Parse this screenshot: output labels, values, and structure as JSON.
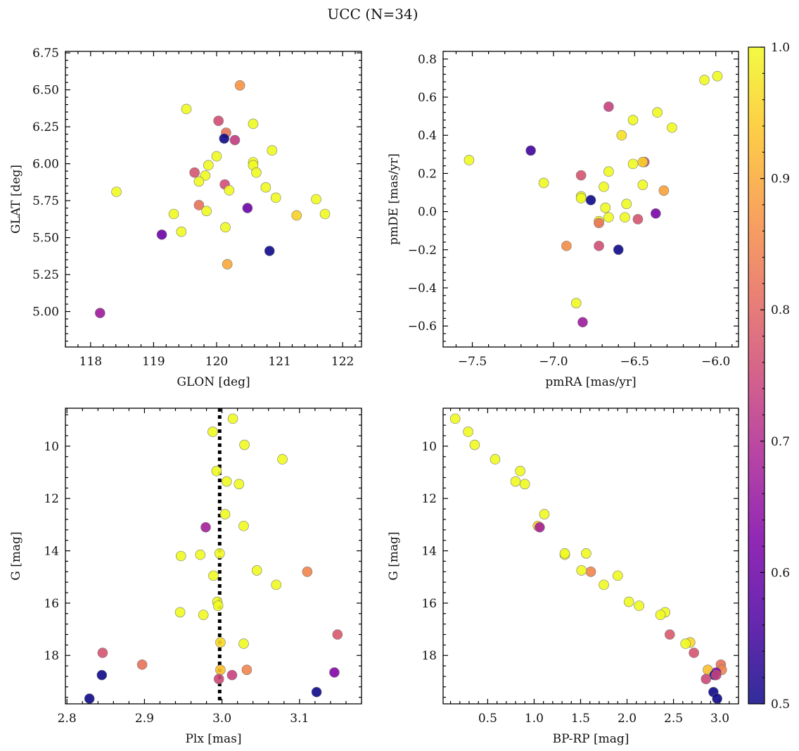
{
  "title": "UCC (N=34)",
  "colorbar": {
    "colormap": "plasma",
    "range": [
      0.5,
      1.0
    ],
    "ticks": [
      "0.5",
      "0.6",
      "0.7",
      "0.8",
      "0.9",
      "1.0"
    ]
  },
  "chart_data": [
    {
      "type": "scatter",
      "xlabel": "GLON [deg]",
      "ylabel": "GLAT [deg]",
      "xlim": [
        117.6,
        122.3
      ],
      "ylim": [
        4.76,
        6.76
      ],
      "y_inverted": false,
      "xticks": [
        "118",
        "119",
        "120",
        "121",
        "122"
      ],
      "yticks": [
        "5.00",
        "5.25",
        "5.50",
        "5.75",
        "6.00",
        "6.25",
        "6.50",
        "6.75"
      ],
      "points": [
        {
          "x": 120.37,
          "y": 6.53,
          "c": 0.87
        },
        {
          "x": 119.52,
          "y": 6.37,
          "c": 1.0
        },
        {
          "x": 120.03,
          "y": 6.29,
          "c": 0.76
        },
        {
          "x": 120.58,
          "y": 6.27,
          "c": 1.0
        },
        {
          "x": 120.15,
          "y": 6.21,
          "c": 0.82
        },
        {
          "x": 120.12,
          "y": 6.17,
          "c": 0.5
        },
        {
          "x": 120.29,
          "y": 6.16,
          "c": 0.73
        },
        {
          "x": 120.88,
          "y": 6.09,
          "c": 1.0
        },
        {
          "x": 120.0,
          "y": 6.05,
          "c": 1.0
        },
        {
          "x": 120.58,
          "y": 6.01,
          "c": 1.0
        },
        {
          "x": 120.58,
          "y": 5.99,
          "c": 1.0
        },
        {
          "x": 119.87,
          "y": 5.99,
          "c": 1.0
        },
        {
          "x": 120.63,
          "y": 5.94,
          "c": 1.0
        },
        {
          "x": 119.65,
          "y": 5.94,
          "c": 0.77
        },
        {
          "x": 119.82,
          "y": 5.92,
          "c": 1.0
        },
        {
          "x": 119.72,
          "y": 5.88,
          "c": 1.0
        },
        {
          "x": 120.13,
          "y": 5.86,
          "c": 0.76
        },
        {
          "x": 120.78,
          "y": 5.84,
          "c": 1.0
        },
        {
          "x": 120.2,
          "y": 5.82,
          "c": 1.0
        },
        {
          "x": 118.41,
          "y": 5.81,
          "c": 1.0
        },
        {
          "x": 120.94,
          "y": 5.77,
          "c": 1.0
        },
        {
          "x": 121.58,
          "y": 5.76,
          "c": 1.0
        },
        {
          "x": 119.72,
          "y": 5.72,
          "c": 0.82
        },
        {
          "x": 120.49,
          "y": 5.7,
          "c": 0.6
        },
        {
          "x": 119.84,
          "y": 5.68,
          "c": 1.0
        },
        {
          "x": 121.72,
          "y": 5.66,
          "c": 1.0
        },
        {
          "x": 119.32,
          "y": 5.66,
          "c": 1.0
        },
        {
          "x": 121.27,
          "y": 5.65,
          "c": 0.95
        },
        {
          "x": 120.14,
          "y": 5.57,
          "c": 1.0
        },
        {
          "x": 119.44,
          "y": 5.54,
          "c": 1.0
        },
        {
          "x": 119.13,
          "y": 5.52,
          "c": 0.6
        },
        {
          "x": 120.84,
          "y": 5.41,
          "c": 0.5
        },
        {
          "x": 120.17,
          "y": 5.32,
          "c": 0.9
        },
        {
          "x": 118.15,
          "y": 4.99,
          "c": 0.67
        }
      ]
    },
    {
      "type": "scatter",
      "xlabel": "pmRA [mas/yr]",
      "ylabel": "pmDE [mas/yr]",
      "xlim": [
        -7.68,
        -5.86
      ],
      "ylim": [
        -0.71,
        0.84
      ],
      "y_inverted": false,
      "xticks": [
        "−7.5",
        "−7.0",
        "−6.5",
        "−6.0"
      ],
      "yticks": [
        "−0.6",
        "−0.4",
        "−0.2",
        "0.0",
        "0.2",
        "0.4",
        "0.6",
        "0.8"
      ],
      "points": [
        {
          "x": -5.99,
          "y": 0.71,
          "c": 1.0
        },
        {
          "x": -6.07,
          "y": 0.69,
          "c": 1.0
        },
        {
          "x": -6.66,
          "y": 0.55,
          "c": 0.74
        },
        {
          "x": -6.36,
          "y": 0.52,
          "c": 1.0
        },
        {
          "x": -6.51,
          "y": 0.48,
          "c": 1.0
        },
        {
          "x": -6.27,
          "y": 0.44,
          "c": 1.0
        },
        {
          "x": -6.58,
          "y": 0.4,
          "c": 0.97
        },
        {
          "x": -7.14,
          "y": 0.32,
          "c": 0.55
        },
        {
          "x": -7.52,
          "y": 0.27,
          "c": 1.0
        },
        {
          "x": -6.44,
          "y": 0.26,
          "c": 0.75
        },
        {
          "x": -6.45,
          "y": 0.26,
          "c": 0.95
        },
        {
          "x": -6.51,
          "y": 0.25,
          "c": 1.0
        },
        {
          "x": -6.66,
          "y": 0.21,
          "c": 1.0
        },
        {
          "x": -6.83,
          "y": 0.19,
          "c": 0.77
        },
        {
          "x": -7.06,
          "y": 0.15,
          "c": 1.0
        },
        {
          "x": -6.45,
          "y": 0.14,
          "c": 1.0
        },
        {
          "x": -6.69,
          "y": 0.13,
          "c": 1.0
        },
        {
          "x": -6.32,
          "y": 0.11,
          "c": 0.89
        },
        {
          "x": -6.83,
          "y": 0.08,
          "c": 1.0
        },
        {
          "x": -6.83,
          "y": 0.07,
          "c": 1.0
        },
        {
          "x": -6.77,
          "y": 0.06,
          "c": 0.5
        },
        {
          "x": -6.55,
          "y": 0.04,
          "c": 1.0
        },
        {
          "x": -6.68,
          "y": 0.02,
          "c": 1.0
        },
        {
          "x": -6.37,
          "y": -0.01,
          "c": 0.62
        },
        {
          "x": -6.56,
          "y": -0.03,
          "c": 1.0
        },
        {
          "x": -6.66,
          "y": -0.03,
          "c": 1.0
        },
        {
          "x": -6.48,
          "y": -0.04,
          "c": 0.77
        },
        {
          "x": -6.72,
          "y": -0.05,
          "c": 1.0
        },
        {
          "x": -6.72,
          "y": -0.06,
          "c": 0.82
        },
        {
          "x": -6.92,
          "y": -0.18,
          "c": 0.86
        },
        {
          "x": -6.72,
          "y": -0.18,
          "c": 0.76
        },
        {
          "x": -6.6,
          "y": -0.2,
          "c": 0.5
        },
        {
          "x": -6.86,
          "y": -0.48,
          "c": 1.0
        },
        {
          "x": -6.82,
          "y": -0.58,
          "c": 0.67
        }
      ]
    },
    {
      "type": "scatter",
      "xlabel": "Plx [mas]",
      "ylabel": "G [mag]",
      "xlim": [
        2.798,
        3.18
      ],
      "ylim": [
        19.85,
        8.55
      ],
      "y_inverted": true,
      "vline": 2.997,
      "xticks": [
        "2.8",
        "2.9",
        "3.0",
        "3.1"
      ],
      "yticks": [
        "10",
        "12",
        "14",
        "16",
        "18"
      ],
      "points": [
        {
          "x": 3.014,
          "y": 8.95,
          "c": 1.0
        },
        {
          "x": 2.988,
          "y": 9.45,
          "c": 1.0
        },
        {
          "x": 3.029,
          "y": 9.95,
          "c": 1.0
        },
        {
          "x": 3.078,
          "y": 10.5,
          "c": 1.0
        },
        {
          "x": 2.993,
          "y": 10.95,
          "c": 1.0
        },
        {
          "x": 3.006,
          "y": 11.35,
          "c": 1.0
        },
        {
          "x": 3.022,
          "y": 11.45,
          "c": 1.0
        },
        {
          "x": 3.004,
          "y": 12.6,
          "c": 1.0
        },
        {
          "x": 3.028,
          "y": 13.05,
          "c": 1.0
        },
        {
          "x": 2.979,
          "y": 13.1,
          "c": 0.68
        },
        {
          "x": 2.972,
          "y": 14.15,
          "c": 1.0
        },
        {
          "x": 2.997,
          "y": 14.1,
          "c": 1.0
        },
        {
          "x": 2.947,
          "y": 14.2,
          "c": 1.0
        },
        {
          "x": 3.11,
          "y": 14.8,
          "c": 0.85
        },
        {
          "x": 3.045,
          "y": 14.75,
          "c": 1.0
        },
        {
          "x": 2.989,
          "y": 14.95,
          "c": 1.0
        },
        {
          "x": 3.07,
          "y": 15.3,
          "c": 1.0
        },
        {
          "x": 2.994,
          "y": 15.95,
          "c": 1.0
        },
        {
          "x": 2.995,
          "y": 16.1,
          "c": 1.0
        },
        {
          "x": 2.946,
          "y": 16.35,
          "c": 1.0
        },
        {
          "x": 2.976,
          "y": 16.45,
          "c": 1.0
        },
        {
          "x": 3.149,
          "y": 17.2,
          "c": 0.78
        },
        {
          "x": 2.998,
          "y": 17.5,
          "c": 0.96
        },
        {
          "x": 3.028,
          "y": 17.55,
          "c": 1.0
        },
        {
          "x": 2.846,
          "y": 17.9,
          "c": 0.77
        },
        {
          "x": 2.897,
          "y": 18.35,
          "c": 0.82
        },
        {
          "x": 2.998,
          "y": 18.55,
          "c": 0.93
        },
        {
          "x": 3.032,
          "y": 18.55,
          "c": 0.85
        },
        {
          "x": 3.145,
          "y": 18.65,
          "c": 0.63
        },
        {
          "x": 2.845,
          "y": 18.75,
          "c": 0.5
        },
        {
          "x": 3.013,
          "y": 18.75,
          "c": 0.74
        },
        {
          "x": 2.996,
          "y": 18.9,
          "c": 0.75
        },
        {
          "x": 3.122,
          "y": 19.4,
          "c": 0.5
        },
        {
          "x": 2.829,
          "y": 19.65,
          "c": 0.5
        }
      ]
    },
    {
      "type": "scatter",
      "xlabel": "BP-RP [mag]",
      "ylabel": "G [mag]",
      "xlim": [
        0.02,
        3.2
      ],
      "ylim": [
        19.85,
        8.55
      ],
      "y_inverted": true,
      "xticks": [
        "0.5",
        "1.0",
        "1.5",
        "2.0",
        "2.5",
        "3.0"
      ],
      "yticks": [
        "10",
        "12",
        "14",
        "16",
        "18"
      ],
      "points": [
        {
          "x": 0.15,
          "y": 8.95,
          "c": 1.0
        },
        {
          "x": 0.29,
          "y": 9.45,
          "c": 1.0
        },
        {
          "x": 0.36,
          "y": 9.95,
          "c": 1.0
        },
        {
          "x": 0.58,
          "y": 10.5,
          "c": 1.0
        },
        {
          "x": 0.85,
          "y": 10.95,
          "c": 1.0
        },
        {
          "x": 0.8,
          "y": 11.35,
          "c": 1.0
        },
        {
          "x": 0.9,
          "y": 11.45,
          "c": 1.0
        },
        {
          "x": 1.11,
          "y": 12.6,
          "c": 1.0
        },
        {
          "x": 1.04,
          "y": 13.05,
          "c": 0.95
        },
        {
          "x": 1.06,
          "y": 13.1,
          "c": 0.68
        },
        {
          "x": 1.33,
          "y": 14.15,
          "c": 1.0
        },
        {
          "x": 1.33,
          "y": 14.1,
          "c": 1.0
        },
        {
          "x": 1.56,
          "y": 14.1,
          "c": 1.0
        },
        {
          "x": 1.61,
          "y": 14.8,
          "c": 0.85
        },
        {
          "x": 1.51,
          "y": 14.75,
          "c": 1.0
        },
        {
          "x": 1.9,
          "y": 14.95,
          "c": 1.0
        },
        {
          "x": 1.75,
          "y": 15.3,
          "c": 1.0
        },
        {
          "x": 2.02,
          "y": 15.95,
          "c": 1.0
        },
        {
          "x": 2.13,
          "y": 16.1,
          "c": 1.0
        },
        {
          "x": 2.41,
          "y": 16.35,
          "c": 1.0
        },
        {
          "x": 2.36,
          "y": 16.45,
          "c": 1.0
        },
        {
          "x": 2.46,
          "y": 17.2,
          "c": 0.78
        },
        {
          "x": 2.68,
          "y": 17.5,
          "c": 0.96
        },
        {
          "x": 2.63,
          "y": 17.55,
          "c": 1.0
        },
        {
          "x": 2.72,
          "y": 17.9,
          "c": 0.77
        },
        {
          "x": 3.01,
          "y": 18.35,
          "c": 0.82
        },
        {
          "x": 2.87,
          "y": 18.55,
          "c": 0.93
        },
        {
          "x": 3.02,
          "y": 18.55,
          "c": 0.85
        },
        {
          "x": 2.96,
          "y": 18.65,
          "c": 0.63
        },
        {
          "x": 2.94,
          "y": 18.75,
          "c": 0.5
        },
        {
          "x": 2.96,
          "y": 18.75,
          "c": 0.74
        },
        {
          "x": 2.85,
          "y": 18.9,
          "c": 0.75
        },
        {
          "x": 2.93,
          "y": 19.4,
          "c": 0.5
        },
        {
          "x": 2.97,
          "y": 19.65,
          "c": 0.5
        }
      ]
    }
  ]
}
